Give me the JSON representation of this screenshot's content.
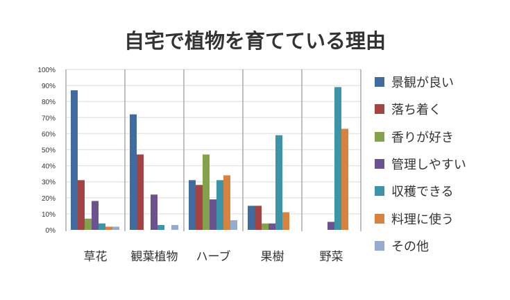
{
  "chart_data": {
    "type": "bar",
    "title": "自宅で植物を育てている理由",
    "categories": [
      "草花",
      "観葉植物",
      "ハーブ",
      "果樹",
      "野菜"
    ],
    "ylim": [
      0,
      100
    ],
    "yticks": [
      "0%",
      "10%",
      "20%",
      "30%",
      "40%",
      "50%",
      "60%",
      "70%",
      "80%",
      "90%",
      "100%"
    ],
    "grid": true,
    "legend_position": "right",
    "series": [
      {
        "name": "景観が良い",
        "color": "#3f6b9e",
        "values": [
          87,
          72,
          31,
          15,
          0
        ]
      },
      {
        "name": "落ち着く",
        "color": "#a34343",
        "values": [
          31,
          47,
          28,
          15,
          0
        ]
      },
      {
        "name": "香りが好き",
        "color": "#84a24b",
        "values": [
          7,
          0,
          47,
          4,
          0
        ]
      },
      {
        "name": "管理しやすい",
        "color": "#6b5390",
        "values": [
          18,
          22,
          19,
          4,
          5
        ]
      },
      {
        "name": "収穫できる",
        "color": "#3d93a8",
        "values": [
          4,
          3,
          31,
          59,
          89
        ]
      },
      {
        "name": "料理に使う",
        "color": "#d88240",
        "values": [
          2,
          0,
          34,
          11,
          63
        ]
      },
      {
        "name": "その他",
        "color": "#95abd2",
        "values": [
          2,
          3,
          6,
          0,
          0
        ]
      }
    ]
  }
}
